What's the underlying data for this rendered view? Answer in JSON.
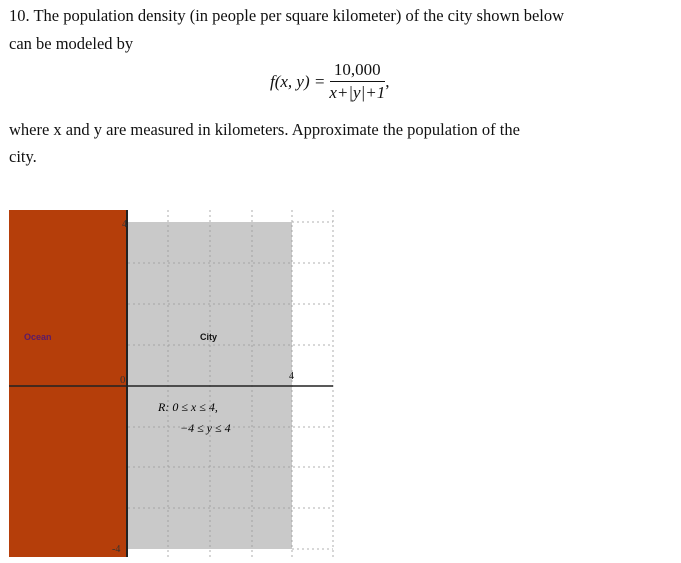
{
  "problem": {
    "line1": "10. The population density (in people per square kilometer) of the city shown below",
    "line2": "can be modeled by",
    "formula_lhs": "f(x, y) =",
    "formula_numerator": "10,000",
    "formula_denominator": "x+|y|+1",
    "formula_trailing": ",",
    "line3": "where  x  and  y  are measured in kilometers. Approximate the population of the",
    "line4": "city."
  },
  "figure": {
    "ocean_label": "Ocean",
    "city_label": "City",
    "region_line1": "R: 0 ≤ x ≤ 4,",
    "region_line2": "−4 ≤ y ≤ 4",
    "tick_y_top": "4",
    "tick_origin": "0",
    "tick_x_right": "4",
    "tick_y_bottom": "-4",
    "colors": {
      "ocean": "#b53e0a",
      "city": "#c9c9c9",
      "ocean_label": "#5a1a6a"
    }
  }
}
